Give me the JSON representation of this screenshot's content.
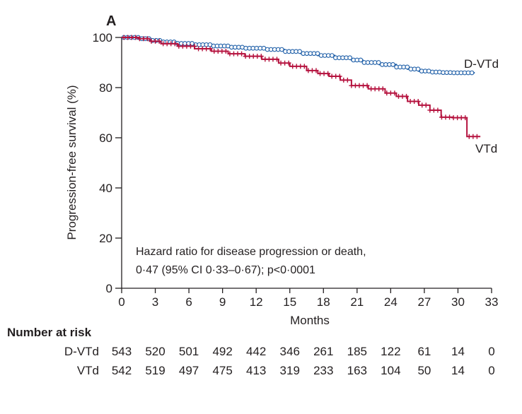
{
  "chart_data": {
    "type": "line",
    "panel_label": "A",
    "xlabel": "Months",
    "ylabel": "Progression-free survival (%)",
    "xlim": [
      0,
      33
    ],
    "ylim": [
      0,
      100
    ],
    "xticks": [
      0,
      3,
      6,
      9,
      12,
      15,
      18,
      21,
      24,
      27,
      30,
      33
    ],
    "yticks": [
      0,
      20,
      40,
      60,
      80,
      100
    ],
    "grid": false,
    "annotation": [
      "Hazard ratio for disease progression or death,",
      "0·47 (95% CI 0·33–0·67); p<0·0001"
    ],
    "colors": {
      "D-VTd": "#1f5fa8",
      "VTd": "#b5123e"
    },
    "series": [
      {
        "name": "D-VTd",
        "censor_marker": "circle",
        "x": [
          0,
          1.5,
          2.5,
          3.5,
          5,
          6.5,
          8,
          9.5,
          11,
          13,
          14.5,
          16,
          17.5,
          19,
          20.5,
          21.5,
          23,
          24.5,
          25.5,
          26.5,
          27.5,
          28.5,
          29.5,
          30.5,
          31.5
        ],
        "y": [
          100,
          99.5,
          98.8,
          98.2,
          97.6,
          97.1,
          96.6,
          96.1,
          95.7,
          95.2,
          94.4,
          93.6,
          92.8,
          91.9,
          91,
          90,
          89.2,
          88.2,
          87.4,
          86.6,
          86.2,
          86,
          85.9,
          85.9,
          85.9
        ]
      },
      {
        "name": "VTd",
        "censor_marker": "plus",
        "x": [
          0,
          1.5,
          2.5,
          3.5,
          5,
          6.5,
          8,
          9.5,
          11,
          12.5,
          14,
          15,
          16.5,
          17.5,
          18.5,
          19.5,
          20.5,
          22,
          23.5,
          24.5,
          25.5,
          26.5,
          27.5,
          28.5,
          29.5,
          30.8,
          32
        ],
        "y": [
          100,
          99.5,
          98.5,
          97.5,
          96.5,
          95.5,
          94.5,
          93.5,
          92.5,
          91.3,
          89.8,
          88.5,
          86.8,
          85.6,
          84.5,
          83,
          80.8,
          79.5,
          77.8,
          76.5,
          74.5,
          73,
          71,
          68.2,
          68,
          60.5,
          60.5
        ]
      }
    ],
    "series_labels": [
      "D-VTd",
      "VTd"
    ],
    "number_at_risk": {
      "title": "Number at risk",
      "time_points": [
        0,
        3,
        6,
        9,
        12,
        15,
        18,
        21,
        24,
        27,
        30,
        33
      ],
      "rows": [
        {
          "label": "D-VTd",
          "values": [
            543,
            520,
            501,
            492,
            442,
            346,
            261,
            185,
            122,
            61,
            14,
            0
          ]
        },
        {
          "label": "VTd",
          "values": [
            542,
            519,
            497,
            475,
            413,
            319,
            233,
            163,
            104,
            50,
            14,
            0
          ]
        }
      ]
    }
  }
}
